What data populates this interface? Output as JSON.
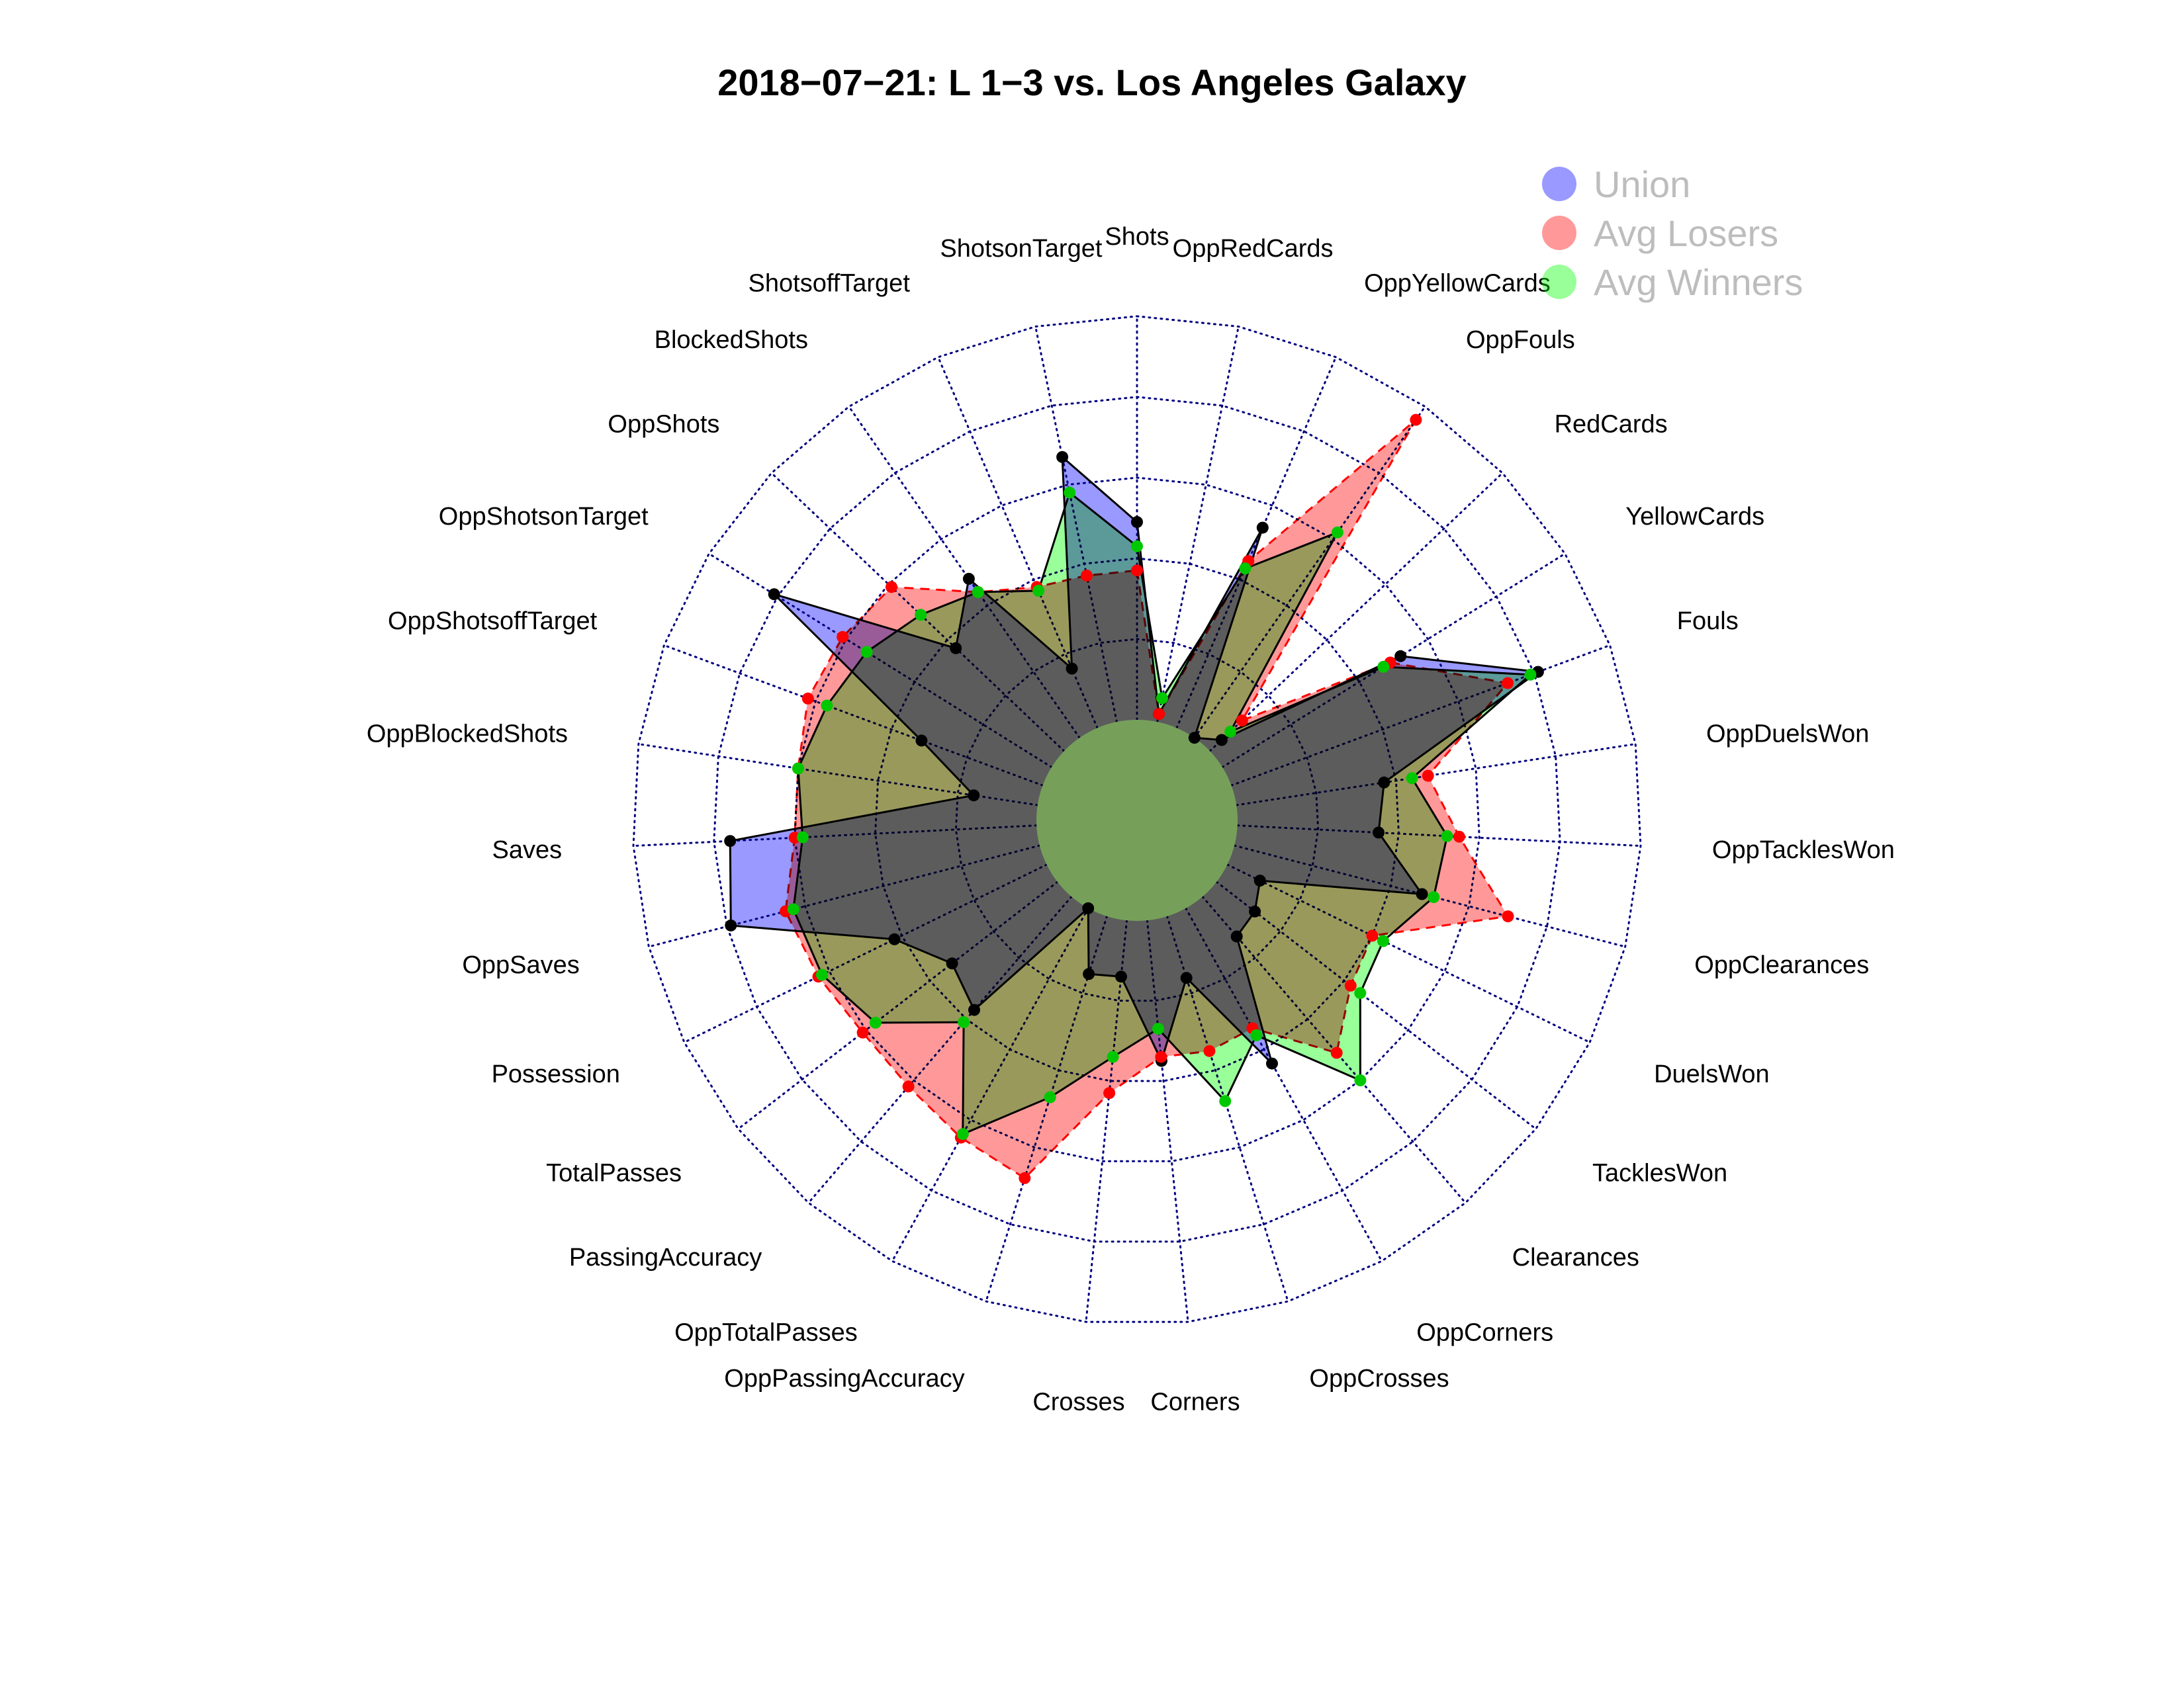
{
  "chart_data": {
    "type": "radar",
    "title": "2018−07−21:  L 1−3   vs. Los Angeles Galaxy",
    "axes": [
      "Shots",
      "OppRedCards",
      "OppYellowCards",
      "OppFouls",
      "RedCards",
      "YellowCards",
      "Fouls",
      "OppDuelsWon",
      "OppTacklesWon",
      "OppClearances",
      "DuelsWon",
      "TacklesWon",
      "Clearances",
      "OppCorners",
      "OppCrosses",
      "Corners",
      "Crosses",
      "OppPassingAccuracy",
      "OppTotalPasses",
      "PassingAccuracy",
      "TotalPasses",
      "Possession",
      "OppSaves",
      "Saves",
      "OppBlockedShots",
      "OppShotsoffTarget",
      "OppShotsonTarget",
      "OppShots",
      "BlockedShots",
      "ShotsoffTarget",
      "ShotsonTarget"
    ],
    "rlim": [
      0,
      1
    ],
    "grid_rings": 5,
    "series": [
      {
        "name": "Union",
        "color": "#0000ff",
        "marker_color": "#000000",
        "line": "solid",
        "values": [
          0.49,
          0.02,
          0.54,
          0.0,
          0.04,
          0.52,
          0.81,
          0.37,
          0.35,
          0.48,
          0.09,
          0.12,
          0.13,
          0.44,
          0.16,
          0.35,
          0.14,
          0.15,
          0.0,
          0.37,
          0.33,
          0.42,
          0.79,
          0.76,
          0.16,
          0.32,
          0.81,
          0.37,
          0.48,
          0.16,
          0.67
        ]
      },
      {
        "name": "Avg Losers",
        "color": "#ff0000",
        "marker_color": "#ff0000",
        "line": "dashed",
        "values": [
          0.37,
          0.02,
          0.45,
          0.96,
          0.11,
          0.49,
          0.73,
          0.48,
          0.55,
          0.7,
          0.4,
          0.42,
          0.51,
          0.34,
          0.35,
          0.34,
          0.43,
          0.68,
          0.65,
          0.62,
          0.61,
          0.63,
          0.65,
          0.6,
          0.6,
          0.62,
          0.61,
          0.59,
          0.44,
          0.38,
          0.37
        ]
      },
      {
        "name": "Avg Winners",
        "color": "#00ff00",
        "marker_color": "#00c800",
        "line": "solid",
        "values": [
          0.43,
          0.06,
          0.43,
          0.62,
          0.07,
          0.47,
          0.79,
          0.44,
          0.52,
          0.51,
          0.43,
          0.45,
          0.6,
          0.36,
          0.48,
          0.27,
          0.34,
          0.47,
          0.64,
          0.41,
          0.57,
          0.62,
          0.63,
          0.58,
          0.6,
          0.57,
          0.54,
          0.49,
          0.44,
          0.37,
          0.58
        ]
      }
    ],
    "legend": {
      "position": "top-right",
      "entries": [
        "Union",
        "Avg Losers",
        "Avg Winners"
      ]
    }
  }
}
